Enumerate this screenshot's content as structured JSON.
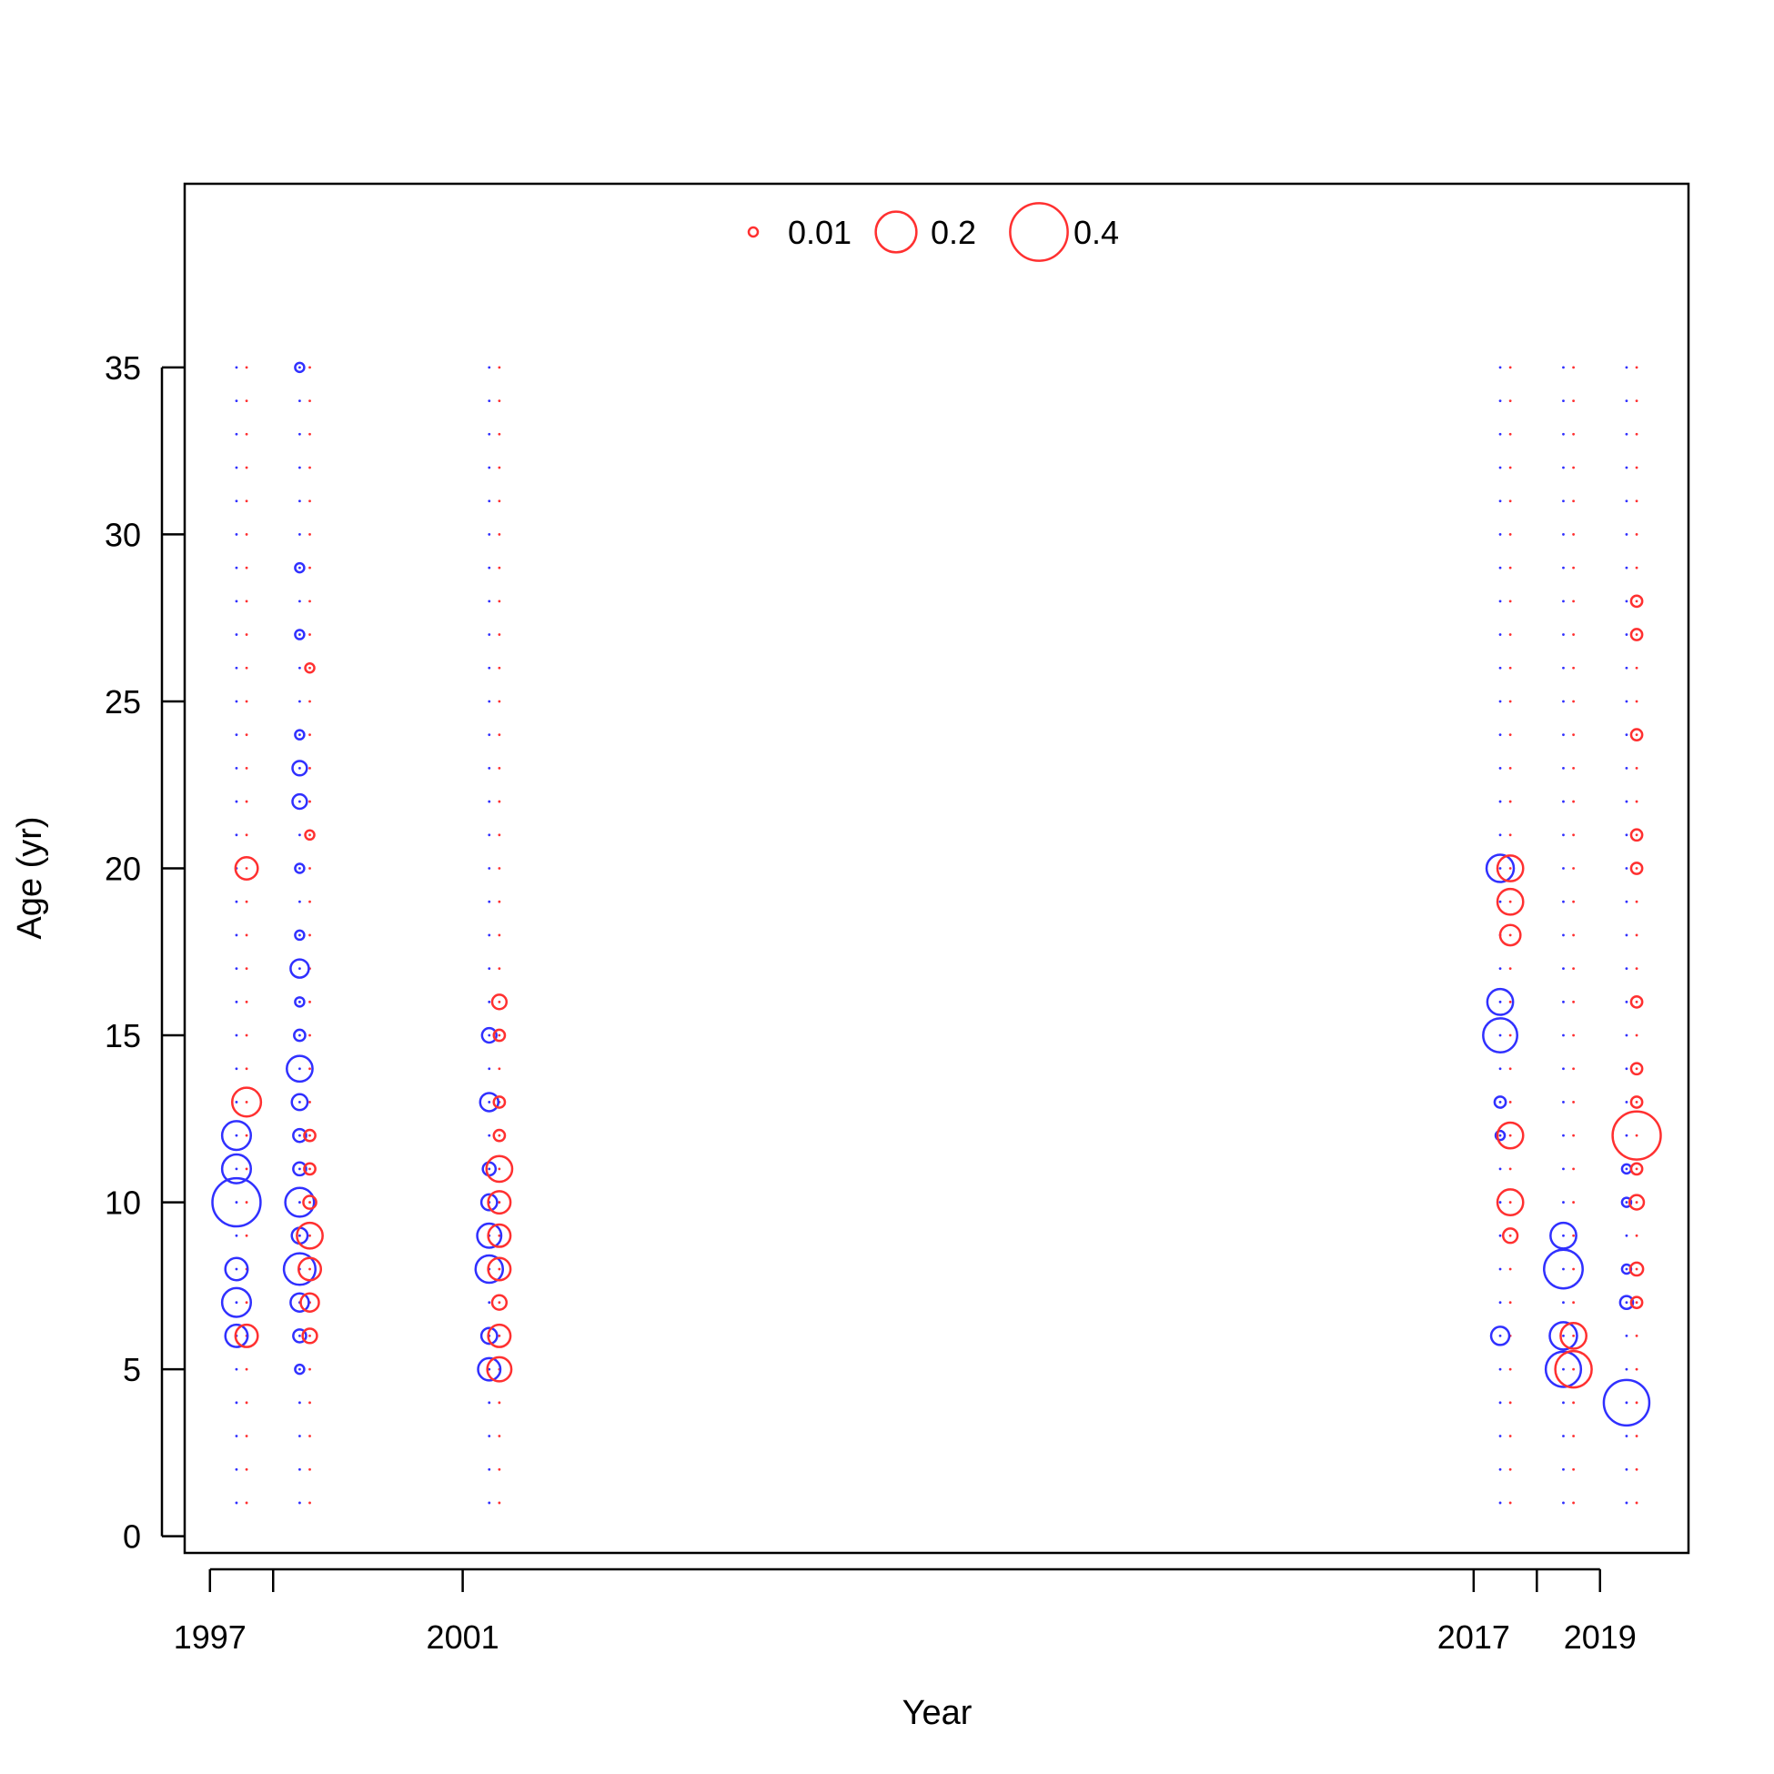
{
  "chart_data": {
    "type": "scatter",
    "title": "",
    "xlabel": "Year",
    "ylabel": "Age (yr)",
    "xlim": [
      1996.6,
      2020.4
    ],
    "ylim": [
      -0.5,
      40.5
    ],
    "x_ticks": [
      1997,
      1998,
      2001,
      2017,
      2018,
      2019
    ],
    "x_tick_labels": [
      "1997",
      "",
      "2001",
      "2017",
      "",
      "2019"
    ],
    "y_ticks": [
      0,
      5,
      10,
      15,
      20,
      25,
      30,
      35
    ],
    "ages": [
      1,
      2,
      3,
      4,
      5,
      6,
      7,
      8,
      9,
      10,
      11,
      12,
      13,
      14,
      15,
      16,
      17,
      18,
      19,
      20,
      21,
      22,
      23,
      24,
      25,
      26,
      27,
      28,
      29,
      30,
      31,
      32,
      33,
      34,
      35
    ],
    "legend": {
      "placement": "top-center",
      "entries": [
        {
          "label": "0.01",
          "value": 0.01
        },
        {
          "label": "0.2",
          "value": 0.2
        },
        {
          "label": "0.4",
          "value": 0.4
        }
      ]
    },
    "colors": {
      "female": "#ff3030",
      "male": "#3030ff",
      "axis": "#000000"
    },
    "series": [
      {
        "color": "male",
        "points": [
          {
            "x": 1997.42,
            "y": 6,
            "v": 0.06
          },
          {
            "x": 1997.42,
            "y": 7,
            "v": 0.1
          },
          {
            "x": 1997.42,
            "y": 8,
            "v": 0.06
          },
          {
            "x": 1997.42,
            "y": 10,
            "v": 0.28
          },
          {
            "x": 1997.42,
            "y": 11,
            "v": 0.1
          },
          {
            "x": 1997.42,
            "y": 12,
            "v": 0.1
          },
          {
            "x": 1998.42,
            "y": 5,
            "v": 0.01
          },
          {
            "x": 1998.42,
            "y": 6,
            "v": 0.02
          },
          {
            "x": 1998.42,
            "y": 7,
            "v": 0.04
          },
          {
            "x": 1998.42,
            "y": 8,
            "v": 0.12
          },
          {
            "x": 1998.42,
            "y": 9,
            "v": 0.03
          },
          {
            "x": 1998.42,
            "y": 10,
            "v": 0.1
          },
          {
            "x": 1998.42,
            "y": 11,
            "v": 0.02
          },
          {
            "x": 1998.42,
            "y": 12,
            "v": 0.02
          },
          {
            "x": 1998.42,
            "y": 13,
            "v": 0.03
          },
          {
            "x": 1998.42,
            "y": 14,
            "v": 0.08
          },
          {
            "x": 1998.42,
            "y": 15,
            "v": 0.015
          },
          {
            "x": 1998.42,
            "y": 16,
            "v": 0.01
          },
          {
            "x": 1998.42,
            "y": 17,
            "v": 0.04
          },
          {
            "x": 1998.42,
            "y": 18,
            "v": 0.01
          },
          {
            "x": 1998.42,
            "y": 20,
            "v": 0.01
          },
          {
            "x": 1998.42,
            "y": 22,
            "v": 0.025
          },
          {
            "x": 1998.42,
            "y": 23,
            "v": 0.025
          },
          {
            "x": 1998.42,
            "y": 24,
            "v": 0.01
          },
          {
            "x": 1998.42,
            "y": 27,
            "v": 0.01
          },
          {
            "x": 1998.42,
            "y": 29,
            "v": 0.01
          },
          {
            "x": 1998.42,
            "y": 35,
            "v": 0.01
          },
          {
            "x": 2001.42,
            "y": 5,
            "v": 0.06
          },
          {
            "x": 2001.42,
            "y": 6,
            "v": 0.03
          },
          {
            "x": 2001.42,
            "y": 8,
            "v": 0.09
          },
          {
            "x": 2001.42,
            "y": 9,
            "v": 0.07
          },
          {
            "x": 2001.42,
            "y": 10,
            "v": 0.03
          },
          {
            "x": 2001.42,
            "y": 11,
            "v": 0.02
          },
          {
            "x": 2001.42,
            "y": 13,
            "v": 0.04
          },
          {
            "x": 2001.42,
            "y": 15,
            "v": 0.025
          },
          {
            "x": 2017.42,
            "y": 6,
            "v": 0.04
          },
          {
            "x": 2017.42,
            "y": 12,
            "v": 0.01
          },
          {
            "x": 2017.42,
            "y": 13,
            "v": 0.015
          },
          {
            "x": 2017.42,
            "y": 15,
            "v": 0.14
          },
          {
            "x": 2017.42,
            "y": 16,
            "v": 0.08
          },
          {
            "x": 2017.42,
            "y": 20,
            "v": 0.09
          },
          {
            "x": 2018.42,
            "y": 5,
            "v": 0.15
          },
          {
            "x": 2018.42,
            "y": 6,
            "v": 0.09
          },
          {
            "x": 2018.42,
            "y": 8,
            "v": 0.18
          },
          {
            "x": 2018.42,
            "y": 9,
            "v": 0.08
          },
          {
            "x": 2019.42,
            "y": 4,
            "v": 0.25
          },
          {
            "x": 2019.42,
            "y": 7,
            "v": 0.02
          },
          {
            "x": 2019.42,
            "y": 8,
            "v": 0.01
          },
          {
            "x": 2019.42,
            "y": 10,
            "v": 0.01
          },
          {
            "x": 2019.42,
            "y": 11,
            "v": 0.01
          }
        ]
      },
      {
        "color": "female",
        "points": [
          {
            "x": 1997.58,
            "y": 6,
            "v": 0.06
          },
          {
            "x": 1997.58,
            "y": 13,
            "v": 0.1
          },
          {
            "x": 1997.58,
            "y": 20,
            "v": 0.06
          },
          {
            "x": 1998.58,
            "y": 6,
            "v": 0.025
          },
          {
            "x": 1998.58,
            "y": 7,
            "v": 0.04
          },
          {
            "x": 1998.58,
            "y": 8,
            "v": 0.06
          },
          {
            "x": 1998.58,
            "y": 9,
            "v": 0.08
          },
          {
            "x": 1998.58,
            "y": 10,
            "v": 0.02
          },
          {
            "x": 1998.58,
            "y": 11,
            "v": 0.015
          },
          {
            "x": 1998.58,
            "y": 12,
            "v": 0.015
          },
          {
            "x": 1998.58,
            "y": 21,
            "v": 0.01
          },
          {
            "x": 1998.58,
            "y": 26,
            "v": 0.01
          },
          {
            "x": 2001.58,
            "y": 5,
            "v": 0.07
          },
          {
            "x": 2001.58,
            "y": 6,
            "v": 0.06
          },
          {
            "x": 2001.58,
            "y": 7,
            "v": 0.025
          },
          {
            "x": 2001.58,
            "y": 8,
            "v": 0.06
          },
          {
            "x": 2001.58,
            "y": 9,
            "v": 0.06
          },
          {
            "x": 2001.58,
            "y": 10,
            "v": 0.06
          },
          {
            "x": 2001.58,
            "y": 11,
            "v": 0.08
          },
          {
            "x": 2001.58,
            "y": 12,
            "v": 0.015
          },
          {
            "x": 2001.58,
            "y": 13,
            "v": 0.015
          },
          {
            "x": 2001.58,
            "y": 15,
            "v": 0.015
          },
          {
            "x": 2001.58,
            "y": 16,
            "v": 0.025
          },
          {
            "x": 2017.58,
            "y": 9,
            "v": 0.025
          },
          {
            "x": 2017.58,
            "y": 10,
            "v": 0.08
          },
          {
            "x": 2017.58,
            "y": 12,
            "v": 0.08
          },
          {
            "x": 2017.58,
            "y": 18,
            "v": 0.05
          },
          {
            "x": 2017.58,
            "y": 19,
            "v": 0.08
          },
          {
            "x": 2017.58,
            "y": 20,
            "v": 0.08
          },
          {
            "x": 2018.58,
            "y": 5,
            "v": 0.16
          },
          {
            "x": 2018.58,
            "y": 6,
            "v": 0.08
          },
          {
            "x": 2019.58,
            "y": 7,
            "v": 0.015
          },
          {
            "x": 2019.58,
            "y": 8,
            "v": 0.02
          },
          {
            "x": 2019.58,
            "y": 10,
            "v": 0.025
          },
          {
            "x": 2019.58,
            "y": 11,
            "v": 0.015
          },
          {
            "x": 2019.58,
            "y": 12,
            "v": 0.28
          },
          {
            "x": 2019.58,
            "y": 13,
            "v": 0.015
          },
          {
            "x": 2019.58,
            "y": 14,
            "v": 0.015
          },
          {
            "x": 2019.58,
            "y": 16,
            "v": 0.015
          },
          {
            "x": 2019.58,
            "y": 20,
            "v": 0.015
          },
          {
            "x": 2019.58,
            "y": 21,
            "v": 0.015
          },
          {
            "x": 2019.58,
            "y": 24,
            "v": 0.015
          },
          {
            "x": 2019.58,
            "y": 27,
            "v": 0.015
          },
          {
            "x": 2019.58,
            "y": 28,
            "v": 0.015
          }
        ]
      }
    ],
    "background_points": {
      "value": 0.001,
      "columns": [
        {
          "x": 1997.42,
          "color": "male"
        },
        {
          "x": 1997.58,
          "color": "female"
        },
        {
          "x": 1998.42,
          "color": "male"
        },
        {
          "x": 1998.58,
          "color": "female"
        },
        {
          "x": 2001.42,
          "color": "male"
        },
        {
          "x": 2001.58,
          "color": "female"
        },
        {
          "x": 2017.42,
          "color": "male"
        },
        {
          "x": 2017.58,
          "color": "female"
        },
        {
          "x": 2018.42,
          "color": "male"
        },
        {
          "x": 2018.58,
          "color": "female"
        },
        {
          "x": 2019.42,
          "color": "male"
        },
        {
          "x": 2019.58,
          "color": "female"
        }
      ]
    }
  }
}
